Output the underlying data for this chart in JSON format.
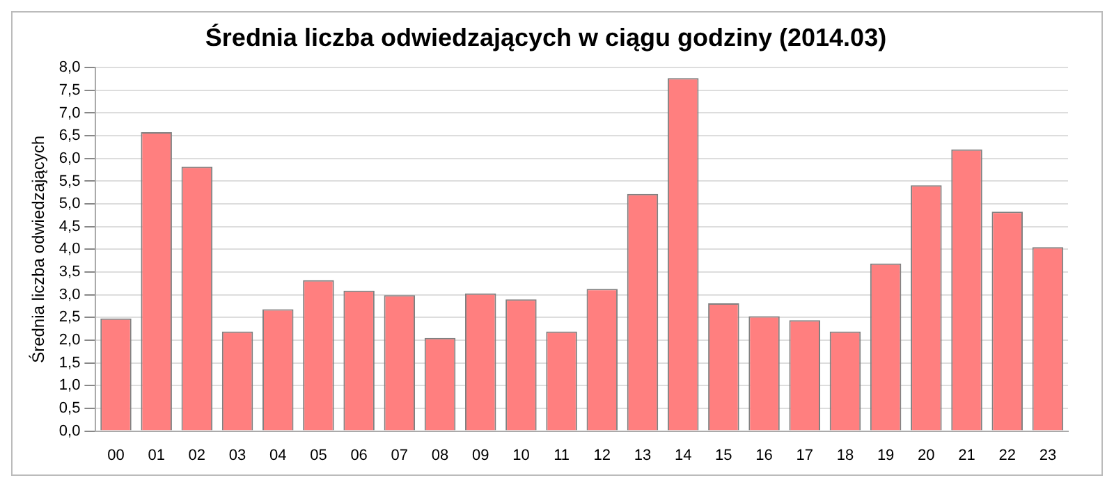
{
  "chart_data": {
    "type": "bar",
    "title": "Średnia liczba odwiedzających w ciągu godziny (2014.03)",
    "ylabel": "Średnia liczba odwiedzających",
    "categories": [
      "00",
      "01",
      "02",
      "03",
      "04",
      "05",
      "06",
      "07",
      "08",
      "09",
      "10",
      "11",
      "12",
      "13",
      "14",
      "15",
      "16",
      "17",
      "18",
      "19",
      "20",
      "21",
      "22",
      "23"
    ],
    "values": [
      2.48,
      6.58,
      5.82,
      2.19,
      2.68,
      3.32,
      3.09,
      2.99,
      2.05,
      3.03,
      2.9,
      2.19,
      3.13,
      5.22,
      7.77,
      2.81,
      2.53,
      2.44,
      2.19,
      3.69,
      5.41,
      6.2,
      4.83,
      4.05
    ],
    "color": "#ff7f7f",
    "ylim": [
      0,
      8
    ],
    "yticks": [
      {
        "value": 0,
        "label": "0,0"
      },
      {
        "value": 0.5,
        "label": "0,5"
      },
      {
        "value": 1,
        "label": "1,0"
      },
      {
        "value": 1.5,
        "label": "1,5"
      },
      {
        "value": 2,
        "label": "2,0"
      },
      {
        "value": 2.5,
        "label": "2,5"
      },
      {
        "value": 3,
        "label": "3,0"
      },
      {
        "value": 3.5,
        "label": "3,5"
      },
      {
        "value": 4,
        "label": "4,0"
      },
      {
        "value": 4.5,
        "label": "4,5"
      },
      {
        "value": 5,
        "label": "5,0"
      },
      {
        "value": 5.5,
        "label": "5,5"
      },
      {
        "value": 6,
        "label": "6,0"
      },
      {
        "value": 6.5,
        "label": "6,5"
      },
      {
        "value": 7,
        "label": "7,0"
      },
      {
        "value": 7.5,
        "label": "7,5"
      },
      {
        "value": 8,
        "label": "8,0"
      }
    ],
    "grid": "y",
    "legend": false
  }
}
